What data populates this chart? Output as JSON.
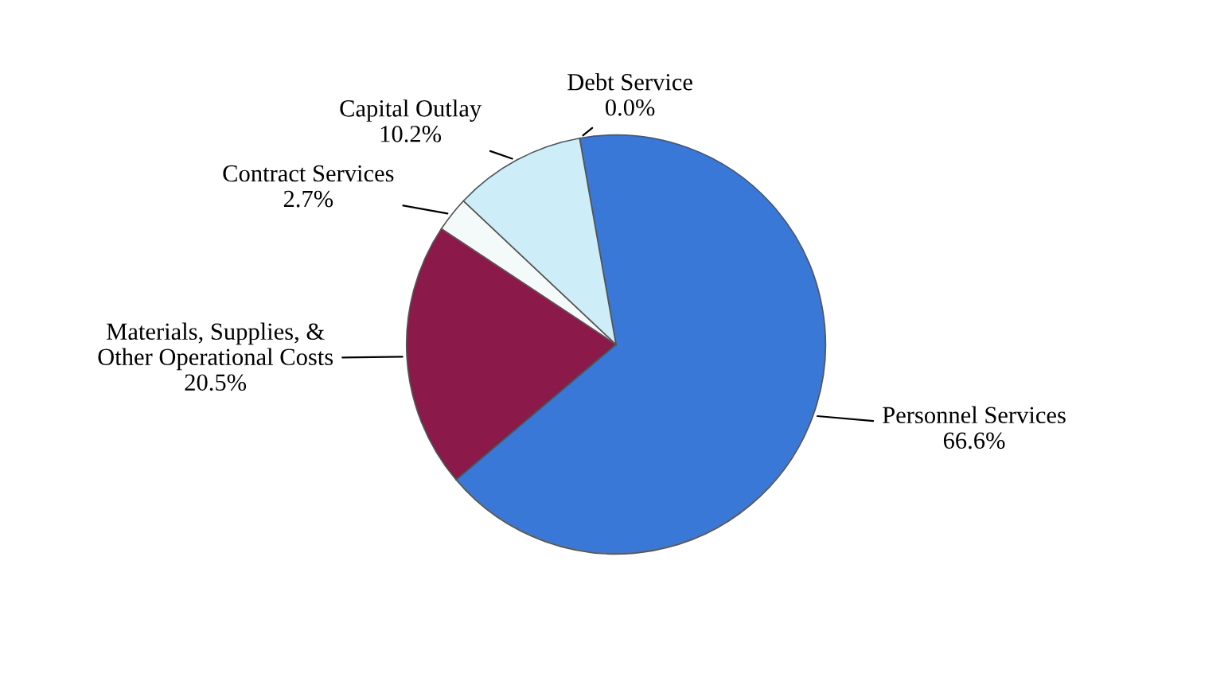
{
  "chart_data": {
    "type": "pie",
    "categories": [
      "Personnel Services",
      "Materials, Supplies, &\nOther Operational Costs",
      "Contract Services",
      "Capital Outlay",
      "Debt Service"
    ],
    "values": [
      66.6,
      20.5,
      2.7,
      10.2,
      0.0
    ],
    "value_labels": [
      "66.6%",
      "20.5%",
      "2.7%",
      "10.2%",
      "0.0%"
    ],
    "colors": [
      "#3a78d8",
      "#8b1a4a",
      "#f4fafa",
      "#cdeef8",
      "#9a9a9a"
    ],
    "legend": false
  }
}
